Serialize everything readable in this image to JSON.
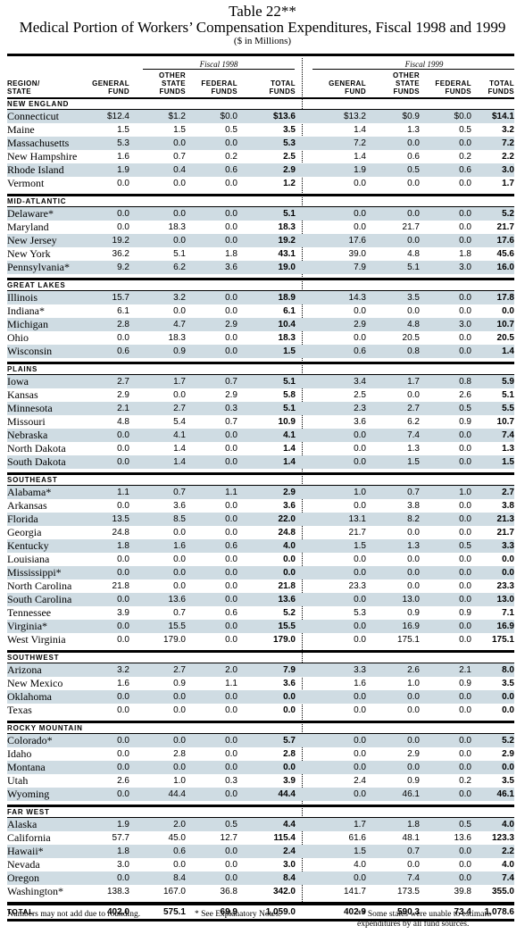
{
  "title": "Table 22**",
  "subtitle": "Medical Portion of Workers’ Compensation Expenditures, Fiscal 1998 and 1999",
  "units": "($ in Millions)",
  "fiscal_1998": "Fiscal 1998",
  "fiscal_1999": "Fiscal 1999",
  "headers": {
    "region_state": "REGION/\nSTATE",
    "general_fund": "GENERAL\nFUND",
    "other_state_funds": "OTHER\nSTATE\nFUNDS",
    "federal_funds": "FEDERAL\nFUNDS",
    "total_funds": "TOTAL\nFUNDS"
  },
  "regions": [
    {
      "name": "NEW ENGLAND",
      "rows": [
        [
          "Connecticut",
          "$12.4",
          "$1.2",
          "$0.0",
          "$13.6",
          "$13.2",
          "$0.9",
          "$0.0",
          "$14.1"
        ],
        [
          "Maine",
          "1.5",
          "1.5",
          "0.5",
          "3.5",
          "1.4",
          "1.3",
          "0.5",
          "3.2"
        ],
        [
          "Massachusetts",
          "5.3",
          "0.0",
          "0.0",
          "5.3",
          "7.2",
          "0.0",
          "0.0",
          "7.2"
        ],
        [
          "New Hampshire",
          "1.6",
          "0.7",
          "0.2",
          "2.5",
          "1.4",
          "0.6",
          "0.2",
          "2.2"
        ],
        [
          "Rhode Island",
          "1.9",
          "0.4",
          "0.6",
          "2.9",
          "1.9",
          "0.5",
          "0.6",
          "3.0"
        ],
        [
          "Vermont",
          "0.0",
          "0.0",
          "0.0",
          "1.2",
          "0.0",
          "0.0",
          "0.0",
          "1.7"
        ]
      ]
    },
    {
      "name": "MID-ATLANTIC",
      "rows": [
        [
          "Delaware*",
          "0.0",
          "0.0",
          "0.0",
          "5.1",
          "0.0",
          "0.0",
          "0.0",
          "5.2"
        ],
        [
          "Maryland",
          "0.0",
          "18.3",
          "0.0",
          "18.3",
          "0.0",
          "21.7",
          "0.0",
          "21.7"
        ],
        [
          "New Jersey",
          "19.2",
          "0.0",
          "0.0",
          "19.2",
          "17.6",
          "0.0",
          "0.0",
          "17.6"
        ],
        [
          "New York",
          "36.2",
          "5.1",
          "1.8",
          "43.1",
          "39.0",
          "4.8",
          "1.8",
          "45.6"
        ],
        [
          "Pennsylvania*",
          "9.2",
          "6.2",
          "3.6",
          "19.0",
          "7.9",
          "5.1",
          "3.0",
          "16.0"
        ]
      ]
    },
    {
      "name": "GREAT LAKES",
      "rows": [
        [
          "Illinois",
          "15.7",
          "3.2",
          "0.0",
          "18.9",
          "14.3",
          "3.5",
          "0.0",
          "17.8"
        ],
        [
          "Indiana*",
          "6.1",
          "0.0",
          "0.0",
          "6.1",
          "0.0",
          "0.0",
          "0.0",
          "0.0"
        ],
        [
          "Michigan",
          "2.8",
          "4.7",
          "2.9",
          "10.4",
          "2.9",
          "4.8",
          "3.0",
          "10.7"
        ],
        [
          "Ohio",
          "0.0",
          "18.3",
          "0.0",
          "18.3",
          "0.0",
          "20.5",
          "0.0",
          "20.5"
        ],
        [
          "Wisconsin",
          "0.6",
          "0.9",
          "0.0",
          "1.5",
          "0.6",
          "0.8",
          "0.0",
          "1.4"
        ]
      ]
    },
    {
      "name": "PLAINS",
      "rows": [
        [
          "Iowa",
          "2.7",
          "1.7",
          "0.7",
          "5.1",
          "3.4",
          "1.7",
          "0.8",
          "5.9"
        ],
        [
          "Kansas",
          "2.9",
          "0.0",
          "2.9",
          "5.8",
          "2.5",
          "0.0",
          "2.6",
          "5.1"
        ],
        [
          "Minnesota",
          "2.1",
          "2.7",
          "0.3",
          "5.1",
          "2.3",
          "2.7",
          "0.5",
          "5.5"
        ],
        [
          "Missouri",
          "4.8",
          "5.4",
          "0.7",
          "10.9",
          "3.6",
          "6.2",
          "0.9",
          "10.7"
        ],
        [
          "Nebraska",
          "0.0",
          "4.1",
          "0.0",
          "4.1",
          "0.0",
          "7.4",
          "0.0",
          "7.4"
        ],
        [
          "North Dakota",
          "0.0",
          "1.4",
          "0.0",
          "1.4",
          "0.0",
          "1.3",
          "0.0",
          "1.3"
        ],
        [
          "South Dakota",
          "0.0",
          "1.4",
          "0.0",
          "1.4",
          "0.0",
          "1.5",
          "0.0",
          "1.5"
        ]
      ]
    },
    {
      "name": "SOUTHEAST",
      "rows": [
        [
          "Alabama*",
          "1.1",
          "0.7",
          "1.1",
          "2.9",
          "1.0",
          "0.7",
          "1.0",
          "2.7"
        ],
        [
          "Arkansas",
          "0.0",
          "3.6",
          "0.0",
          "3.6",
          "0.0",
          "3.8",
          "0.0",
          "3.8"
        ],
        [
          "Florida",
          "13.5",
          "8.5",
          "0.0",
          "22.0",
          "13.1",
          "8.2",
          "0.0",
          "21.3"
        ],
        [
          "Georgia",
          "24.8",
          "0.0",
          "0.0",
          "24.8",
          "21.7",
          "0.0",
          "0.0",
          "21.7"
        ],
        [
          "Kentucky",
          "1.8",
          "1.6",
          "0.6",
          "4.0",
          "1.5",
          "1.3",
          "0.5",
          "3.3"
        ],
        [
          "Louisiana",
          "0.0",
          "0.0",
          "0.0",
          "0.0",
          "0.0",
          "0.0",
          "0.0",
          "0.0"
        ],
        [
          "Mississippi*",
          "0.0",
          "0.0",
          "0.0",
          "0.0",
          "0.0",
          "0.0",
          "0.0",
          "0.0"
        ],
        [
          "North Carolina",
          "21.8",
          "0.0",
          "0.0",
          "21.8",
          "23.3",
          "0.0",
          "0.0",
          "23.3"
        ],
        [
          "South Carolina",
          "0.0",
          "13.6",
          "0.0",
          "13.6",
          "0.0",
          "13.0",
          "0.0",
          "13.0"
        ],
        [
          "Tennessee",
          "3.9",
          "0.7",
          "0.6",
          "5.2",
          "5.3",
          "0.9",
          "0.9",
          "7.1"
        ],
        [
          "Virginia*",
          "0.0",
          "15.5",
          "0.0",
          "15.5",
          "0.0",
          "16.9",
          "0.0",
          "16.9"
        ],
        [
          "West Virginia",
          "0.0",
          "179.0",
          "0.0",
          "179.0",
          "0.0",
          "175.1",
          "0.0",
          "175.1"
        ]
      ]
    },
    {
      "name": "SOUTHWEST",
      "rows": [
        [
          "Arizona",
          "3.2",
          "2.7",
          "2.0",
          "7.9",
          "3.3",
          "2.6",
          "2.1",
          "8.0"
        ],
        [
          "New Mexico",
          "1.6",
          "0.9",
          "1.1",
          "3.6",
          "1.6",
          "1.0",
          "0.9",
          "3.5"
        ],
        [
          "Oklahoma",
          "0.0",
          "0.0",
          "0.0",
          "0.0",
          "0.0",
          "0.0",
          "0.0",
          "0.0"
        ],
        [
          "Texas",
          "0.0",
          "0.0",
          "0.0",
          "0.0",
          "0.0",
          "0.0",
          "0.0",
          "0.0"
        ]
      ]
    },
    {
      "name": "ROCKY MOUNTAIN",
      "rows": [
        [
          "Colorado*",
          "0.0",
          "0.0",
          "0.0",
          "5.7",
          "0.0",
          "0.0",
          "0.0",
          "5.2"
        ],
        [
          "Idaho",
          "0.0",
          "2.8",
          "0.0",
          "2.8",
          "0.0",
          "2.9",
          "0.0",
          "2.9"
        ],
        [
          "Montana",
          "0.0",
          "0.0",
          "0.0",
          "0.0",
          "0.0",
          "0.0",
          "0.0",
          "0.0"
        ],
        [
          "Utah",
          "2.6",
          "1.0",
          "0.3",
          "3.9",
          "2.4",
          "0.9",
          "0.2",
          "3.5"
        ],
        [
          "Wyoming",
          "0.0",
          "44.4",
          "0.0",
          "44.4",
          "0.0",
          "46.1",
          "0.0",
          "46.1"
        ]
      ]
    },
    {
      "name": "FAR WEST",
      "rows": [
        [
          "Alaska",
          "1.9",
          "2.0",
          "0.5",
          "4.4",
          "1.7",
          "1.8",
          "0.5",
          "4.0"
        ],
        [
          "California",
          "57.7",
          "45.0",
          "12.7",
          "115.4",
          "61.6",
          "48.1",
          "13.6",
          "123.3"
        ],
        [
          "Hawaii*",
          "1.8",
          "0.6",
          "0.0",
          "2.4",
          "1.5",
          "0.7",
          "0.0",
          "2.2"
        ],
        [
          "Nevada",
          "3.0",
          "0.0",
          "0.0",
          "3.0",
          "4.0",
          "0.0",
          "0.0",
          "4.0"
        ],
        [
          "Oregon",
          "0.0",
          "8.4",
          "0.0",
          "8.4",
          "0.0",
          "7.4",
          "0.0",
          "7.4"
        ],
        [
          "Washington*",
          "138.3",
          "167.0",
          "36.8",
          "342.0",
          "141.7",
          "173.5",
          "39.8",
          "355.0"
        ]
      ]
    }
  ],
  "total": [
    "TOTAL",
    "402.0",
    "575.1",
    "69.9",
    "1,059.0",
    "402.9",
    "590.3",
    "73.4",
    "1,078.6"
  ],
  "notes": {
    "rounding": "Numbers may not add due to rounding.",
    "explanatory": "* See Explanatory Notes.",
    "estimate": "** Some states were unable to estimate expenditures by all fund sources."
  }
}
